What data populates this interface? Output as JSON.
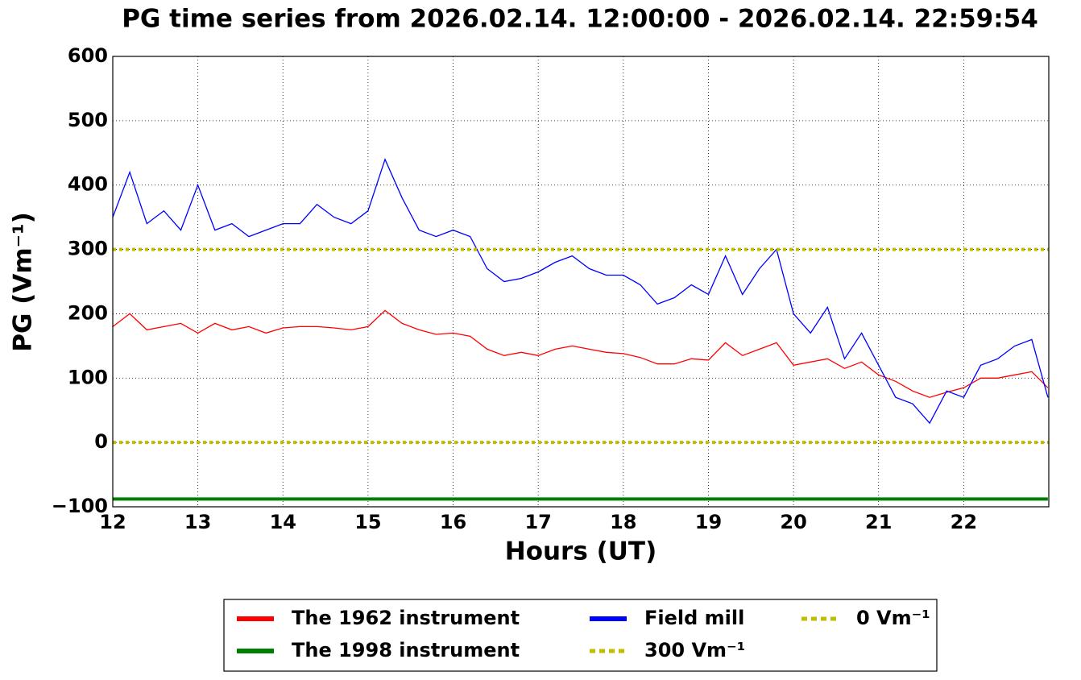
{
  "chart_data": {
    "type": "line",
    "title": "PG time series from 2026.02.14. 12:00:00 - 2026.02.14. 22:59:54",
    "xlabel": "Hours (UT)",
    "ylabel": "PG (Vm⁻¹)",
    "xlim": [
      12,
      23
    ],
    "ylim": [
      -100,
      600
    ],
    "xticks": [
      12,
      13,
      14,
      15,
      16,
      17,
      18,
      19,
      20,
      21,
      22
    ],
    "yticks": [
      {
        "value": -100,
        "label": "−100"
      },
      0,
      100,
      200,
      300,
      400,
      500,
      600
    ],
    "grid": true,
    "legend": "below",
    "x": [
      12.0,
      12.2,
      12.4,
      12.6,
      12.8,
      13.0,
      13.2,
      13.4,
      13.6,
      13.8,
      14.0,
      14.2,
      14.4,
      14.6,
      14.8,
      15.0,
      15.2,
      15.4,
      15.6,
      15.8,
      16.0,
      16.2,
      16.4,
      16.6,
      16.8,
      17.0,
      17.2,
      17.4,
      17.6,
      17.8,
      18.0,
      18.2,
      18.4,
      18.6,
      18.8,
      19.0,
      19.2,
      19.4,
      19.6,
      19.8,
      20.0,
      20.2,
      20.4,
      20.6,
      20.8,
      21.0,
      21.2,
      21.4,
      21.6,
      21.8,
      22.0,
      22.2,
      22.4,
      22.6,
      22.8,
      22.99
    ],
    "series": [
      {
        "name": "The 1962 instrument",
        "color": "#ff0000",
        "style": "solid",
        "values": [
          180,
          200,
          175,
          180,
          185,
          170,
          185,
          175,
          180,
          170,
          178,
          180,
          180,
          178,
          175,
          180,
          205,
          185,
          175,
          168,
          170,
          165,
          145,
          135,
          140,
          135,
          145,
          150,
          145,
          140,
          138,
          132,
          122,
          122,
          130,
          128,
          155,
          135,
          145,
          155,
          120,
          125,
          130,
          115,
          125,
          105,
          95,
          80,
          70,
          78,
          85,
          100,
          100,
          105,
          110,
          85
        ]
      },
      {
        "name": "The 1998 instrument",
        "color": "#008000",
        "style": "solid",
        "x": [
          12.0,
          22.99
        ],
        "values": [
          -88,
          -88
        ]
      },
      {
        "name": "Field mill",
        "color": "#0000ff",
        "style": "solid",
        "values": [
          350,
          420,
          340,
          360,
          330,
          400,
          330,
          340,
          320,
          330,
          340,
          340,
          370,
          350,
          340,
          360,
          440,
          380,
          330,
          320,
          330,
          320,
          270,
          250,
          255,
          265,
          280,
          290,
          270,
          260,
          260,
          245,
          215,
          225,
          245,
          230,
          290,
          230,
          270,
          300,
          200,
          170,
          210,
          130,
          170,
          120,
          70,
          60,
          30,
          80,
          70,
          120,
          130,
          150,
          160,
          70
        ]
      },
      {
        "name": "300 Vm⁻¹",
        "color": "#bfbf00",
        "style": "dotted",
        "x": [
          12,
          23
        ],
        "values": [
          300,
          300
        ]
      },
      {
        "name": "0 Vm⁻¹",
        "color": "#bfbf00",
        "style": "dotted",
        "x": [
          12,
          23
        ],
        "values": [
          0,
          0
        ]
      }
    ]
  }
}
